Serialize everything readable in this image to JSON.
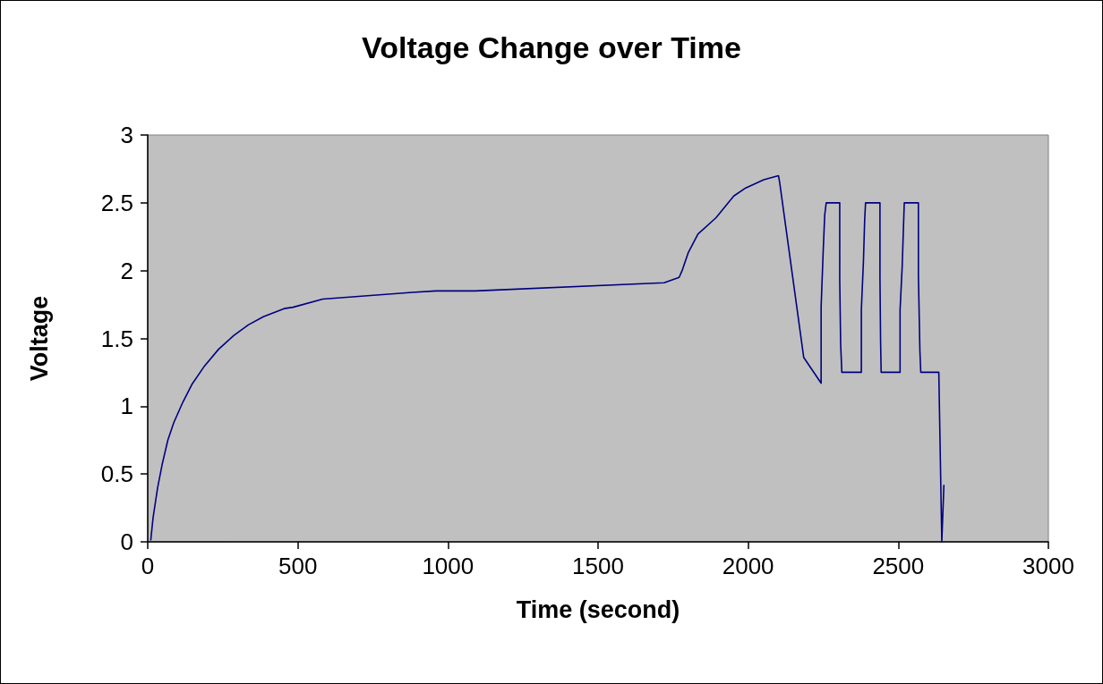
{
  "chart_data": {
    "type": "line",
    "title": "Voltage Change over Time",
    "xlabel": "Time (second)",
    "ylabel": "Voltage",
    "xlim": [
      0,
      3000
    ],
    "xticks": [
      0,
      500,
      1000,
      1500,
      2000,
      2500,
      3000
    ],
    "ylim": [
      0,
      3
    ],
    "yticks": [
      0,
      0.5,
      1,
      1.5,
      2,
      2.5,
      3
    ],
    "grid": false,
    "marker": "none",
    "line_style": "solid",
    "series": [
      {
        "color": "#000080",
        "x": [
          10,
          18,
          33,
          48,
          67,
          87,
          117,
          147,
          187,
          236,
          286,
          335,
          385,
          454,
          484,
          583,
          881,
          960,
          1090,
          1720,
          1770,
          1780,
          1800,
          1833,
          1893,
          1952,
          1992,
          2052,
          2101,
          2105,
          2185,
          2243,
          2243,
          2250,
          2255,
          2260,
          2305,
          2305,
          2308,
          2312,
          2314,
          2377,
          2377,
          2384,
          2388,
          2391,
          2439,
          2439,
          2441,
          2443,
          2445,
          2506,
          2506,
          2513,
          2520,
          2567,
          2567,
          2572,
          2575,
          2577,
          2635,
          2645,
          2652
        ],
        "values": [
          0.01,
          0.18,
          0.4,
          0.57,
          0.75,
          0.88,
          1.03,
          1.16,
          1.29,
          1.42,
          1.52,
          1.6,
          1.66,
          1.72,
          1.73,
          1.79,
          1.84,
          1.85,
          1.85,
          1.91,
          1.95,
          2.0,
          2.13,
          2.27,
          2.39,
          2.55,
          2.61,
          2.67,
          2.7,
          2.65,
          1.36,
          1.17,
          1.73,
          2.15,
          2.41,
          2.5,
          2.5,
          1.93,
          1.46,
          1.25,
          1.25,
          1.25,
          1.71,
          2.07,
          2.37,
          2.5,
          2.5,
          1.95,
          1.49,
          1.25,
          1.25,
          1.25,
          1.71,
          2.03,
          2.5,
          2.5,
          1.97,
          1.41,
          1.25,
          1.25,
          1.25,
          0,
          0.42
        ]
      }
    ]
  }
}
